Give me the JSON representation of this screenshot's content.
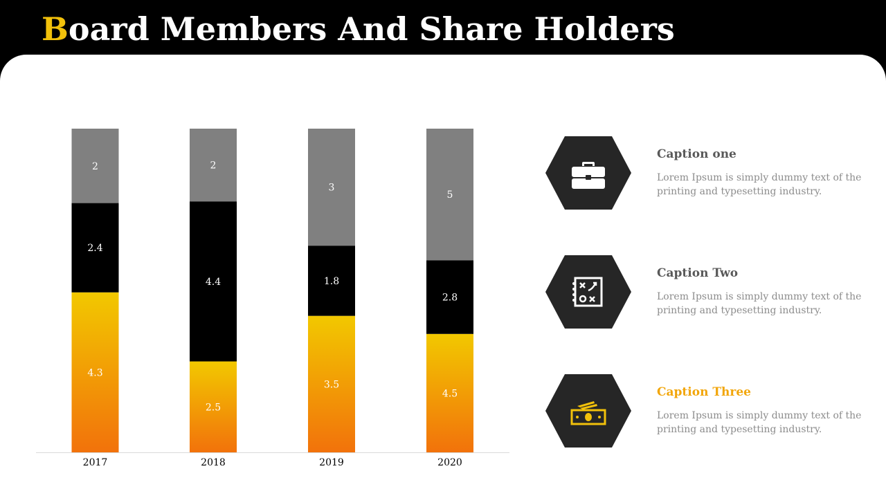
{
  "title": {
    "first_letter": "B",
    "rest": "oard Members And Share Holders"
  },
  "colors": {
    "accent": "#f2c10b",
    "accent_orange": "#f27a0b",
    "black": "#000000",
    "gray": "#808080",
    "hex_fill": "#262626"
  },
  "chart_data": {
    "type": "bar",
    "stacked": true,
    "categories": [
      "2017",
      "2018",
      "2019",
      "2020"
    ],
    "series": [
      {
        "values": [
          4.3,
          2.5,
          3.5,
          4.5
        ],
        "color": "gradient-yellow-orange"
      },
      {
        "values": [
          2.4,
          4.4,
          1.8,
          2.8
        ],
        "color": "#000000"
      },
      {
        "values": [
          2,
          2,
          3,
          5
        ],
        "color": "#808080"
      }
    ],
    "data_labels": true,
    "legend": "none",
    "grid": false
  },
  "captions": [
    {
      "title": "Caption one",
      "text": "Lorem Ipsum is simply dummy text of the printing and typesetting industry.",
      "icon": "briefcase-icon",
      "icon_color": "#ffffff",
      "highlight": false
    },
    {
      "title": "Caption Two",
      "text": "Lorem Ipsum is simply dummy text of the printing and typesetting industry.",
      "icon": "strategy-board-icon",
      "icon_color": "#ffffff",
      "highlight": false
    },
    {
      "title": "Caption Three",
      "text": "Lorem Ipsum is simply dummy text of the printing and typesetting industry.",
      "icon": "money-icon",
      "icon_color": "#f2c10b",
      "highlight": true
    }
  ]
}
